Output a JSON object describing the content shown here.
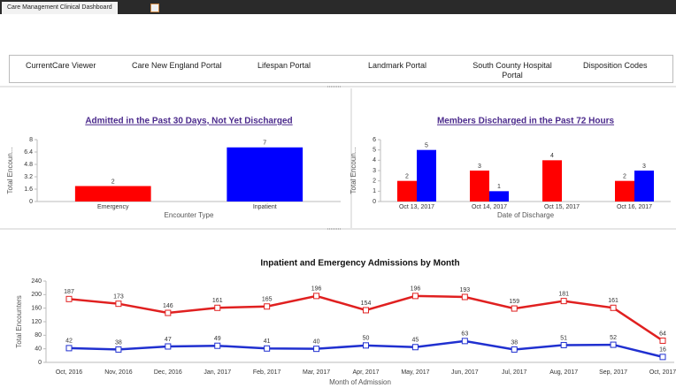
{
  "tab": "Care Management Clinical Dashboard",
  "nav": [
    "CurrentCare Viewer",
    "Care New England Portal",
    "Lifespan Portal",
    "Landmark Portal",
    "South County Hospital Portal",
    "Disposition Codes"
  ],
  "chart_data": [
    {
      "type": "bar",
      "title": "Admitted in the Past 30 Days, Not Yet Discharged",
      "categories": [
        "Emergency",
        "Inpatient"
      ],
      "values": [
        2,
        7
      ],
      "colors": [
        "#ff0000",
        "#0000ff"
      ],
      "y_label": "Total Encoun...",
      "x_label": "Encounter Type",
      "ylim": [
        0,
        8
      ],
      "yticks": [
        0,
        1.6,
        3.2,
        4.8,
        6.4,
        8
      ]
    },
    {
      "type": "bar",
      "title": "Members Discharged in the Past 72 Hours",
      "categories": [
        "Oct 13, 2017",
        "Oct 14, 2017",
        "Oct 15, 2017",
        "Oct 16, 2017"
      ],
      "series": [
        {
          "color": "#ff0000",
          "values": [
            2,
            3,
            4,
            2
          ]
        },
        {
          "color": "#0000ff",
          "values": [
            5,
            1,
            null,
            3
          ]
        }
      ],
      "y_label": "Total Encoun...",
      "x_label": "Date of Discharge",
      "ylim": [
        0,
        6
      ],
      "yticks": [
        0,
        1,
        2,
        3,
        4,
        5,
        6
      ]
    },
    {
      "type": "line",
      "title": "Inpatient and Emergency Admissions by Month",
      "categories": [
        "Oct, 2016",
        "Nov, 2016",
        "Dec, 2016",
        "Jan, 2017",
        "Feb, 2017",
        "Mar, 2017",
        "Apr, 2017",
        "May, 2017",
        "Jun, 2017",
        "Jul, 2017",
        "Aug, 2017",
        "Sep, 2017",
        "Oct, 2017"
      ],
      "series": [
        {
          "color": "#e02020",
          "values": [
            187,
            173,
            146,
            161,
            165,
            196,
            154,
            196,
            193,
            159,
            181,
            161,
            64
          ]
        },
        {
          "color": "#2030d0",
          "values": [
            42,
            38,
            47,
            49,
            41,
            40,
            50,
            45,
            63,
            38,
            51,
            52,
            16
          ]
        }
      ],
      "y_label": "Total Encounters",
      "x_label": "Month of Admission",
      "ylim": [
        0,
        240
      ],
      "yticks": [
        0,
        40,
        80,
        120,
        160,
        200,
        240
      ]
    }
  ]
}
